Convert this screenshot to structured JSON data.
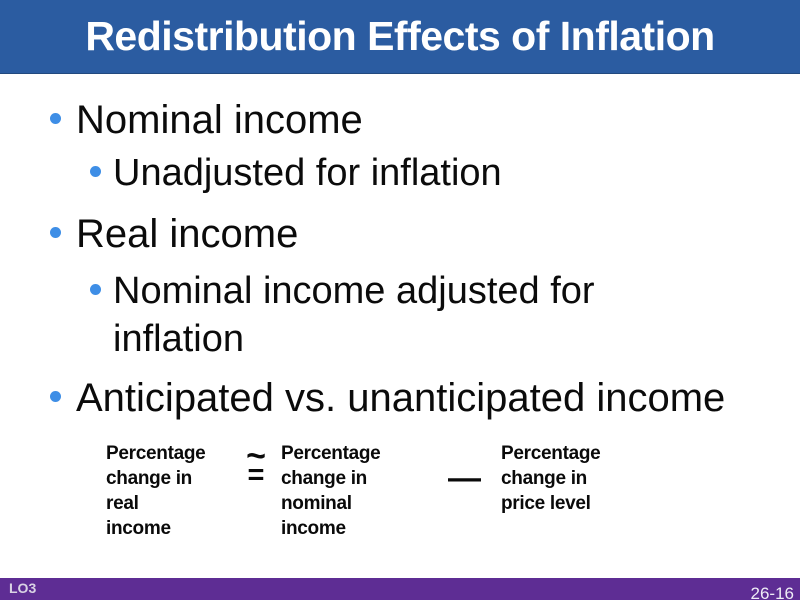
{
  "header": {
    "title": "Redistribution Effects of Inflation"
  },
  "bullets": {
    "items": [
      {
        "level": 1,
        "text": "Nominal income"
      },
      {
        "level": 2,
        "text": "Unadjusted for inflation"
      },
      {
        "level": 1,
        "text": "Real income"
      },
      {
        "level": 2,
        "text": "Nominal income adjusted for inflation"
      },
      {
        "level": 1,
        "text": "Anticipated vs. unanticipated income"
      }
    ]
  },
  "formula": {
    "real_income": "Percentage\nchange in\nreal income",
    "approx_tilde": "~",
    "approx_equals": "=",
    "nominal_income": "Percentage\nchange in\nnominal income",
    "minus": "—",
    "price_level": "Percentage\nchange in\nprice level"
  },
  "footer": {
    "lo_label": "LO3",
    "page_number": "26-16"
  },
  "colors": {
    "header_blue": "#2b5ca1",
    "bullet_blue": "#3e8ee6",
    "footer_purple": "#5e2d94",
    "text_black": "#0b0b0b"
  }
}
